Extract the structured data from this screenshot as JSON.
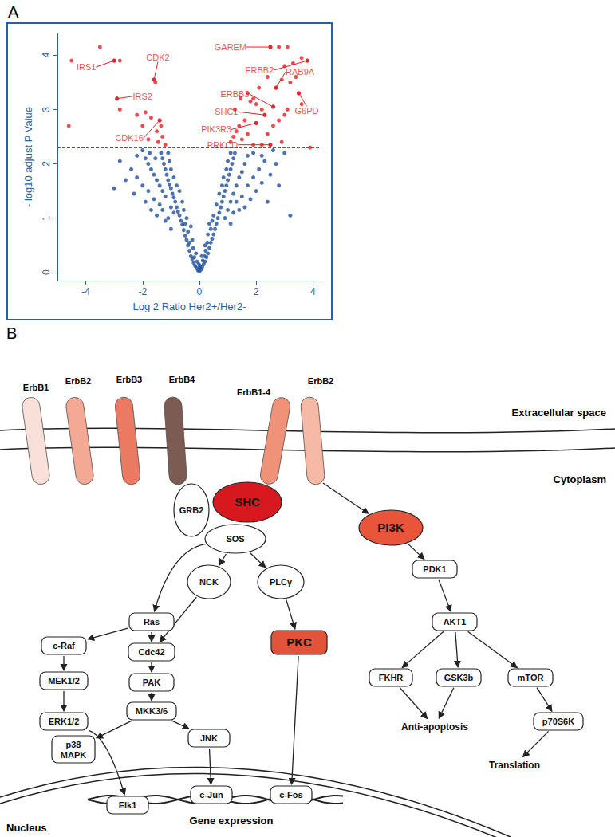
{
  "chart_data": {
    "type": "scatter",
    "panel": "A",
    "x_label": "Log 2 Ratio Her2+/Her2-",
    "y_label": "- log10 adjust P Value",
    "xlim": [
      -5,
      4.3
    ],
    "ylim": [
      -0.15,
      4.4
    ],
    "xticks": [
      -4,
      -2,
      0,
      2,
      4
    ],
    "yticks": [
      0,
      1,
      2,
      3,
      4
    ],
    "grid": false,
    "series": [
      {
        "color": "#1f4f9c",
        "values": [
          [
            0,
            0.02
          ],
          [
            0.05,
            0.05
          ],
          [
            -0.05,
            0.04
          ],
          [
            0.1,
            0.1
          ],
          [
            -0.1,
            0.08
          ],
          [
            0.15,
            0.15
          ],
          [
            -0.15,
            0.12
          ],
          [
            0.2,
            0.2
          ],
          [
            -0.2,
            0.18
          ],
          [
            0.25,
            0.28
          ],
          [
            -0.25,
            0.25
          ],
          [
            0.3,
            0.35
          ],
          [
            -0.3,
            0.3
          ],
          [
            0.35,
            0.45
          ],
          [
            -0.35,
            0.4
          ],
          [
            0.4,
            0.55
          ],
          [
            -0.4,
            0.5
          ],
          [
            0.45,
            0.62
          ],
          [
            -0.45,
            0.6
          ],
          [
            0.5,
            0.7
          ],
          [
            -0.5,
            0.68
          ],
          [
            0.55,
            0.8
          ],
          [
            -0.55,
            0.78
          ],
          [
            0.6,
            0.9
          ],
          [
            -0.6,
            0.88
          ],
          [
            0.65,
            1.0
          ],
          [
            -0.65,
            0.95
          ],
          [
            0.7,
            1.1
          ],
          [
            -0.7,
            1.05
          ],
          [
            0.75,
            1.2
          ],
          [
            -0.75,
            1.12
          ],
          [
            0.8,
            1.3
          ],
          [
            -0.8,
            1.2
          ],
          [
            0.85,
            1.4
          ],
          [
            -0.85,
            1.3
          ],
          [
            0.9,
            1.5
          ],
          [
            -0.9,
            1.38
          ],
          [
            0.95,
            1.6
          ],
          [
            -0.95,
            1.45
          ],
          [
            1.0,
            1.7
          ],
          [
            -1.0,
            1.55
          ],
          [
            1.05,
            1.8
          ],
          [
            -1.05,
            1.62
          ],
          [
            1.1,
            1.9
          ],
          [
            -1.1,
            1.7
          ],
          [
            1.15,
            2.0
          ],
          [
            -1.15,
            1.8
          ],
          [
            1.2,
            2.1
          ],
          [
            -1.2,
            1.9
          ],
          [
            1.25,
            2.2
          ],
          [
            -1.25,
            2.0
          ],
          [
            -1.3,
            2.1
          ],
          [
            -1.35,
            2.2
          ],
          [
            0.08,
            0.3
          ],
          [
            -0.12,
            0.35
          ],
          [
            0.2,
            0.5
          ],
          [
            -0.25,
            0.6
          ],
          [
            0.3,
            0.7
          ],
          [
            -0.3,
            0.85
          ],
          [
            0.35,
            0.9
          ],
          [
            -0.45,
            1.0
          ],
          [
            0.5,
            1.05
          ],
          [
            -0.55,
            1.15
          ],
          [
            0.6,
            1.25
          ],
          [
            -0.6,
            1.3
          ],
          [
            0.7,
            1.45
          ],
          [
            -0.7,
            1.5
          ],
          [
            0.8,
            1.6
          ],
          [
            -0.8,
            1.6
          ],
          [
            0.85,
            1.75
          ],
          [
            -0.9,
            1.75
          ],
          [
            0.95,
            1.9
          ],
          [
            -1.0,
            1.9
          ],
          [
            1.0,
            2.05
          ],
          [
            -1.05,
            2.05
          ],
          [
            1.1,
            2.2
          ],
          [
            -1.1,
            2.2
          ],
          [
            -0.9,
            1.1
          ],
          [
            -1.0,
            1.2
          ],
          [
            -1.2,
            1.4
          ],
          [
            -1.3,
            1.5
          ],
          [
            -1.4,
            1.6
          ],
          [
            -1.5,
            1.7
          ],
          [
            -1.6,
            1.8
          ],
          [
            -1.7,
            1.9
          ],
          [
            -1.8,
            2.0
          ],
          [
            -1.9,
            2.1
          ],
          [
            -2.0,
            2.25
          ],
          [
            -1.4,
            1.25
          ],
          [
            -1.6,
            1.35
          ],
          [
            -1.8,
            1.5
          ],
          [
            -2.0,
            1.6
          ],
          [
            -2.2,
            1.75
          ],
          [
            -2.4,
            1.9
          ],
          [
            -1.5,
            1.05
          ],
          [
            -1.7,
            1.15
          ],
          [
            -1.9,
            1.3
          ],
          [
            -2.3,
            1.45
          ],
          [
            -2.6,
            1.7
          ],
          [
            -1.2,
            0.95
          ],
          [
            -1.0,
            0.8
          ],
          [
            -1.1,
            1.0
          ],
          [
            -1.3,
            1.15
          ],
          [
            -2.8,
            2.05
          ],
          [
            -3.0,
            1.55
          ],
          [
            -1.75,
            2.2
          ],
          [
            -1.55,
            2.1
          ],
          [
            -2.2,
            2.15
          ],
          [
            0.9,
            1.0
          ],
          [
            1.0,
            1.15
          ],
          [
            1.1,
            1.3
          ],
          [
            1.2,
            1.45
          ],
          [
            1.3,
            1.6
          ],
          [
            1.4,
            1.75
          ],
          [
            1.5,
            1.85
          ],
          [
            1.6,
            2.0
          ],
          [
            1.7,
            2.15
          ],
          [
            1.3,
            1.3
          ],
          [
            1.5,
            1.4
          ],
          [
            1.7,
            1.6
          ],
          [
            1.9,
            1.75
          ],
          [
            2.1,
            1.9
          ],
          [
            2.3,
            2.05
          ],
          [
            1.6,
            1.2
          ],
          [
            1.8,
            1.35
          ],
          [
            2.0,
            1.5
          ],
          [
            2.2,
            1.65
          ],
          [
            2.5,
            1.8
          ],
          [
            2.7,
            2.0
          ],
          [
            1.9,
            2.2
          ],
          [
            2.2,
            2.15
          ],
          [
            2.6,
            2.25
          ],
          [
            3.0,
            2.2
          ],
          [
            2.8,
            1.6
          ],
          [
            3.2,
            1.05
          ],
          [
            1.2,
            1.1
          ],
          [
            1.4,
            1.15
          ],
          [
            1.1,
            0.9
          ],
          [
            2.4,
            1.3
          ],
          [
            0.0,
            0.08
          ],
          [
            0.02,
            0.12
          ],
          [
            -0.02,
            0.15
          ],
          [
            0.12,
            0.22
          ],
          [
            -0.08,
            0.2
          ],
          [
            0.18,
            0.3
          ],
          [
            -0.18,
            0.28
          ],
          [
            0.22,
            0.4
          ],
          [
            -0.22,
            0.45
          ],
          [
            0.28,
            0.55
          ],
          [
            -0.35,
            0.55
          ],
          [
            0.4,
            0.8
          ],
          [
            -0.4,
            0.75
          ],
          [
            0.45,
            0.95
          ],
          [
            -0.5,
            0.9
          ]
        ]
      },
      {
        "color": "#e41f26",
        "values": [
          [
            -4.6,
            2.7
          ],
          [
            -4.5,
            3.9
          ],
          [
            -3.5,
            4.15
          ],
          [
            -3.0,
            3.9
          ],
          [
            -2.8,
            3.9
          ],
          [
            -2.9,
            3.2
          ],
          [
            -2.8,
            3.0
          ],
          [
            -1.6,
            3.55
          ],
          [
            -1.55,
            3.5
          ],
          [
            -1.9,
            2.95
          ],
          [
            -1.7,
            2.85
          ],
          [
            -1.4,
            2.8
          ],
          [
            -1.35,
            2.7
          ],
          [
            -1.5,
            2.6
          ],
          [
            -1.3,
            2.5
          ],
          [
            -1.45,
            2.4
          ],
          [
            -2.2,
            2.9
          ],
          [
            -2.0,
            2.7
          ],
          [
            -1.2,
            2.35
          ],
          [
            -1.8,
            2.45
          ],
          [
            2.5,
            4.15
          ],
          [
            2.8,
            4.15
          ],
          [
            3.1,
            4.15
          ],
          [
            3.8,
            3.9
          ],
          [
            3.6,
            3.95
          ],
          [
            3.3,
            3.85
          ],
          [
            3.0,
            3.8
          ],
          [
            3.9,
            2.3
          ],
          [
            3.5,
            3.3
          ],
          [
            3.2,
            3.5
          ],
          [
            3.4,
            3.6
          ],
          [
            2.9,
            3.55
          ],
          [
            2.7,
            3.4
          ],
          [
            2.4,
            3.6
          ],
          [
            2.0,
            3.1
          ],
          [
            2.2,
            3.0
          ],
          [
            1.9,
            3.2
          ],
          [
            1.8,
            3.15
          ],
          [
            2.6,
            3.05
          ],
          [
            2.3,
            2.9
          ],
          [
            2.0,
            2.75
          ],
          [
            1.6,
            2.8
          ],
          [
            1.4,
            2.7
          ],
          [
            1.3,
            2.6
          ],
          [
            1.2,
            2.5
          ],
          [
            1.1,
            2.4
          ],
          [
            1.5,
            2.45
          ],
          [
            1.7,
            2.55
          ],
          [
            2.4,
            2.55
          ],
          [
            2.6,
            2.7
          ],
          [
            2.8,
            2.8
          ],
          [
            3.0,
            2.9
          ],
          [
            2.2,
            2.35
          ],
          [
            1.9,
            2.35
          ],
          [
            2.5,
            2.35
          ],
          [
            2.9,
            2.4
          ],
          [
            3.1,
            3.0
          ],
          [
            3.6,
            3.1
          ],
          [
            1.7,
            3.3
          ],
          [
            2.1,
            3.4
          ],
          [
            1.25,
            3.0
          ],
          [
            1.45,
            3.2
          ]
        ]
      }
    ],
    "threshold": {
      "y": 2.3,
      "color": "#e41f26",
      "line_style": "dashed"
    },
    "annotations": [
      {
        "text": "GAREM",
        "x": 2.5,
        "y": 4.15,
        "color": "#e41f26"
      },
      {
        "text": "ERBB2",
        "x": 3.8,
        "y": 3.9,
        "color": "#e41f26"
      },
      {
        "text": "RAB9A",
        "x": 2.7,
        "y": 3.4,
        "color": "#e41f26"
      },
      {
        "text": "G6PD",
        "x": 3.5,
        "y": 3.3,
        "color": "#e41f26"
      },
      {
        "text": "ERBB3",
        "x": 2.6,
        "y": 3.05,
        "color": "#e41f26"
      },
      {
        "text": "SHC1",
        "x": 2.3,
        "y": 2.9,
        "color": "#e41f26"
      },
      {
        "text": "PIK3R3",
        "x": 2.0,
        "y": 2.75,
        "color": "#e41f26"
      },
      {
        "text": "PRKCD",
        "x": 2.5,
        "y": 2.35,
        "color": "#e41f26"
      },
      {
        "text": "IRS1",
        "x": -3.0,
        "y": 3.9,
        "color": "#e41f26"
      },
      {
        "text": "CDK2",
        "x": -1.6,
        "y": 3.55,
        "color": "#e41f26"
      },
      {
        "text": "IRS2",
        "x": -2.9,
        "y": 3.2,
        "color": "#e41f26"
      },
      {
        "text": "CDK16",
        "x": -1.4,
        "y": 2.8,
        "color": "#e41f26"
      }
    ]
  },
  "diagram": {
    "panel": "B",
    "receptors": [
      {
        "label": "ErbB1",
        "color": "#f9e0d8"
      },
      {
        "label": "ErbB2",
        "color": "#f3a994"
      },
      {
        "label": "ErbB3",
        "color": "#ea7a61"
      },
      {
        "label": "ErbB4",
        "color": "#7b5b52"
      },
      {
        "label": "ErbB1-4",
        "color": "#ef9277"
      },
      {
        "label": "ErbB2",
        "color": "#f6b9a6"
      }
    ],
    "compartments": [
      "Extracellular space",
      "Cytoplasm",
      "Nucleus"
    ],
    "nodes": [
      {
        "label": "GRB2"
      },
      {
        "label": "SHC",
        "color": "#d7191f"
      },
      {
        "label": "SOS"
      },
      {
        "label": "PI3K",
        "color": "#e9553b"
      },
      {
        "label": "NCK"
      },
      {
        "label": "PLCγ"
      },
      {
        "label": "Ras"
      },
      {
        "label": "c-Raf"
      },
      {
        "label": "MEK1/2"
      },
      {
        "label": "ERK1/2"
      },
      {
        "label": "Cdc42"
      },
      {
        "label": "PAK"
      },
      {
        "label": "MKK3/6"
      },
      {
        "label": "p38 MAPK"
      },
      {
        "label": "JNK"
      },
      {
        "label": "PKC",
        "color": "#e2533a"
      },
      {
        "label": "PDK1"
      },
      {
        "label": "AKT1"
      },
      {
        "label": "FKHR"
      },
      {
        "label": "GSK3b"
      },
      {
        "label": "mTOR"
      },
      {
        "label": "p70S6K"
      },
      {
        "label": "Elk1"
      },
      {
        "label": "c-Jun"
      },
      {
        "label": "c-Fos"
      },
      {
        "label": "Anti-apoptosis"
      },
      {
        "label": "Translation"
      }
    ],
    "dna_label": "Gene expression"
  }
}
